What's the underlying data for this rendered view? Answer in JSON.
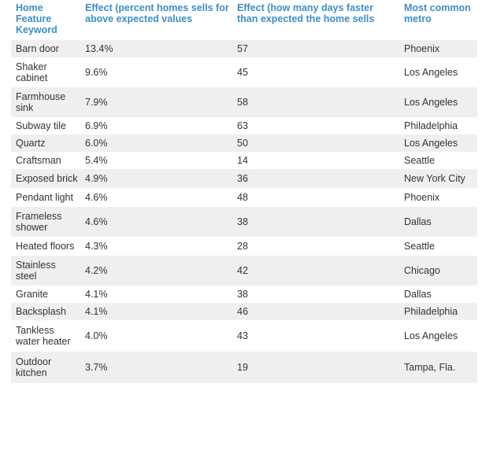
{
  "headers": {
    "feature": "Home Feature Keyword",
    "effect_percent": "Effect (percent homes sells for above expected values",
    "effect_days": "Effect (how many days faster than expected the home sells",
    "metro": "Most common metro"
  },
  "rows": [
    {
      "feature": "Barn door",
      "percent": "13.4%",
      "days": "57",
      "metro": "Phoenix"
    },
    {
      "feature": "Shaker cabinet",
      "percent": "9.6%",
      "days": "45",
      "metro": "Los Angeles"
    },
    {
      "feature": "Farmhouse sink",
      "percent": "7.9%",
      "days": "58",
      "metro": "Los Angeles"
    },
    {
      "feature": "Subway tile",
      "percent": "6.9%",
      "days": "63",
      "metro": "Philadelphia"
    },
    {
      "feature": "Quartz",
      "percent": "6.0%",
      "days": "50",
      "metro": "Los Angeles"
    },
    {
      "feature": "Craftsman",
      "percent": "5.4%",
      "days": "14",
      "metro": "Seattle"
    },
    {
      "feature": "Exposed brick",
      "percent": "4.9%",
      "days": "36",
      "metro": "New York City"
    },
    {
      "feature": "Pendant light",
      "percent": "4.6%",
      "days": "48",
      "metro": "Phoenix"
    },
    {
      "feature": "Frameless shower",
      "percent": "4.6%",
      "days": "38",
      "metro": "Dallas"
    },
    {
      "feature": "Heated floors",
      "percent": "4.3%",
      "days": "28",
      "metro": "Seattle"
    },
    {
      "feature": "Stainless steel",
      "percent": "4.2%",
      "days": "42",
      "metro": "Chicago"
    },
    {
      "feature": "Granite",
      "percent": "4.1%",
      "days": "38",
      "metro": "Dallas"
    },
    {
      "feature": "Backsplash",
      "percent": "4.1%",
      "days": "46",
      "metro": "Philadelphia"
    },
    {
      "feature": "Tankless water heater",
      "percent": "4.0%",
      "days": "43",
      "metro": "Los Angeles"
    },
    {
      "feature": "Outdoor kitchen",
      "percent": "3.7%",
      "days": "19",
      "metro": "Tampa, Fla."
    }
  ],
  "colors": {
    "header_text": "#3b8fc7",
    "row_shade": "#efefef",
    "body_text": "#333333"
  }
}
